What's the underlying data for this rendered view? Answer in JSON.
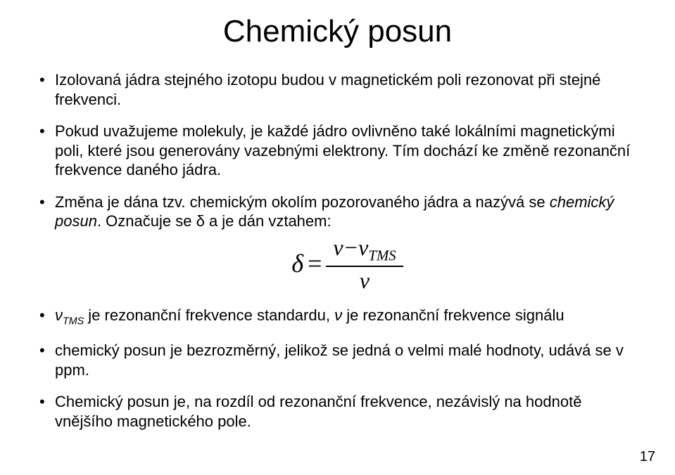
{
  "title": "Chemický posun",
  "bullets": {
    "b1": "Izolovaná jádra stejného izotopu budou v magnetickém poli rezonovat  při stejné frekvenci.",
    "b2": "Pokud uvažujeme molekuly, je každé jádro ovlivněno také lokálními magnetickými poli, které jsou generovány vazebnými elektrony. Tím dochází ke změně rezonanční frekvence daného jádra.",
    "b3_pre": "Změna je dána tzv. chemickým okolím pozorovaného jádra a nazývá se ",
    "b3_ital": "chemický posun",
    "b3_post": ". Označuje se δ a je dán vztahem:",
    "b4_nu": "ν",
    "b4_tms_sub": "TMS",
    "b4_text1": " je rezonanční frekvence standardu, ",
    "b4_nu2": "ν",
    "b4_text2": " je rezonanční frekvence signálu",
    "b5": "chemický posun je bezrozměrný, jelikož se jedná o velmi malé hodnoty, udává se v ppm.",
    "b6": "Chemický posun je, na rozdíl od rezonanční frekvence, nezávislý na hodnotě vnějšího magnetického pole."
  },
  "formula": {
    "lhs": "δ",
    "eq": "=",
    "num_left": "ν",
    "num_minus": "−",
    "num_right": "ν",
    "num_sub": "TMS",
    "den": "ν"
  },
  "pagenum": "17",
  "style": {
    "background_color": "#ffffff",
    "text_color": "#000000",
    "title_fontsize": 44,
    "body_fontsize": 22,
    "formula_fontsize": 36,
    "font_family_body": "Arial, Helvetica, sans-serif",
    "font_family_formula": "Times New Roman, Times, serif"
  }
}
